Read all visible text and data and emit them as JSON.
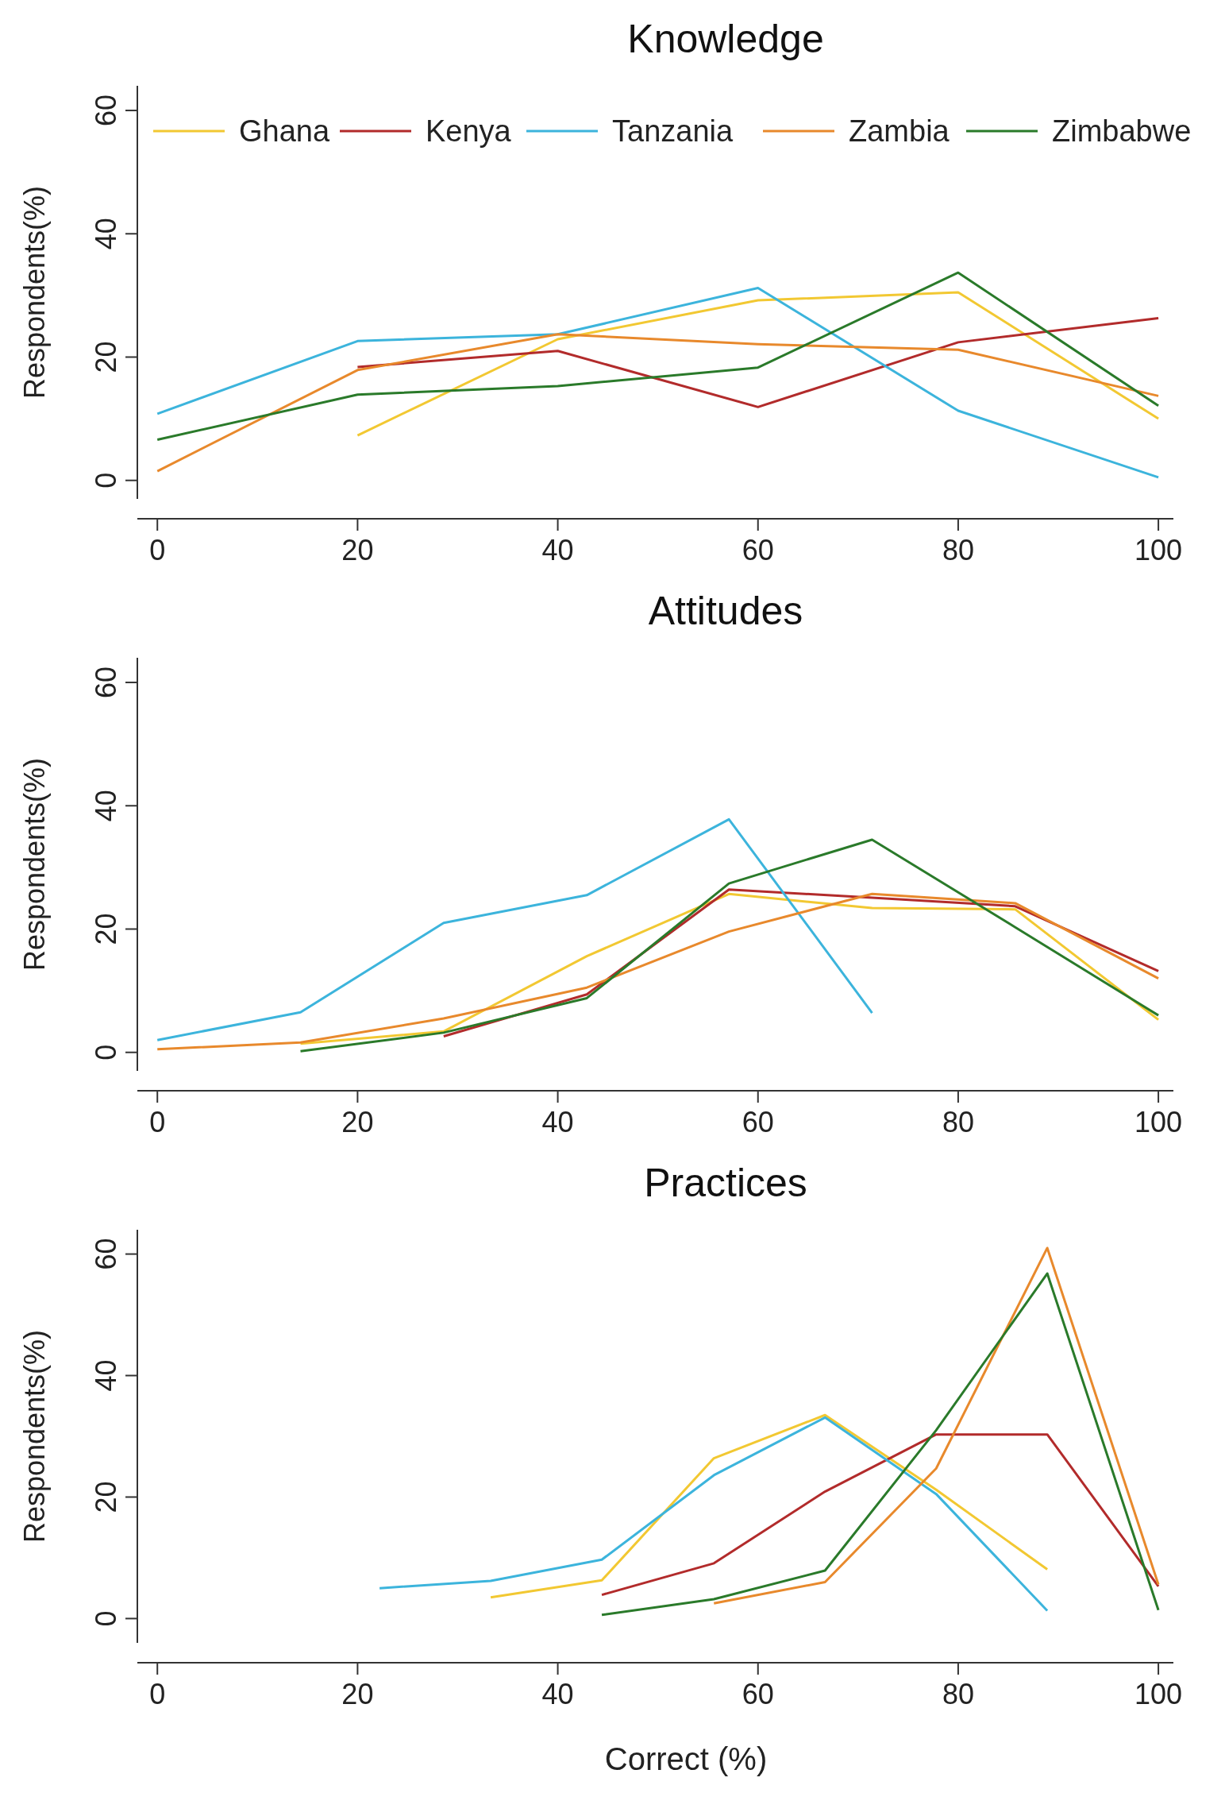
{
  "chart_data": [
    {
      "type": "line",
      "title": "Knowledge",
      "ylabel": "Respondents(%)",
      "xlim": [
        -2,
        101.5
      ],
      "ylim": [
        -3,
        64
      ],
      "xticks": [
        0,
        20,
        40,
        60,
        80,
        100
      ],
      "yticks": [
        0,
        20,
        40,
        60
      ],
      "grid": false,
      "legend": "top",
      "marker": "none",
      "line_style": "solid",
      "series": [
        {
          "name": "Ghana",
          "color": "#f2c832",
          "x": [
            20,
            40,
            60,
            80,
            100
          ],
          "values": [
            7.3,
            22.9,
            29.2,
            30.5,
            10
          ]
        },
        {
          "name": "Kenya",
          "color": "#b22b2b",
          "x": [
            20,
            40,
            60,
            80,
            100
          ],
          "values": [
            18.4,
            21,
            11.9,
            22.4,
            26.3
          ]
        },
        {
          "name": "Tanzania",
          "color": "#3cb4dc",
          "x": [
            0,
            20,
            40,
            60,
            80,
            100
          ],
          "values": [
            10.8,
            22.6,
            23.7,
            31.2,
            11.3,
            0.5
          ]
        },
        {
          "name": "Zambia",
          "color": "#e8892c",
          "x": [
            0,
            20,
            40,
            60,
            80,
            100
          ],
          "values": [
            1.5,
            17.9,
            23.7,
            22.1,
            21.2,
            13.7
          ]
        },
        {
          "name": "Zimbabwe",
          "color": "#2a7a2a",
          "x": [
            0,
            20,
            40,
            60,
            80,
            100
          ],
          "values": [
            6.6,
            13.9,
            15.3,
            18.3,
            33.7,
            12.1
          ]
        }
      ]
    },
    {
      "type": "line",
      "title": "Attitudes",
      "ylabel": "Respondents(%)",
      "xlim": [
        -2,
        101.5
      ],
      "ylim": [
        -3,
        64
      ],
      "xticks": [
        0,
        20,
        40,
        60,
        80,
        100
      ],
      "yticks": [
        0,
        20,
        40,
        60
      ],
      "grid": false,
      "legend": false,
      "marker": "none",
      "line_style": "solid",
      "series": [
        {
          "color": "#f2c832",
          "x": [
            14.3,
            28.6,
            42.9,
            57.1,
            71.4,
            85.7,
            100
          ],
          "values": [
            1.4,
            3.4,
            15.6,
            25.7,
            23.4,
            23.2,
            5.3
          ]
        },
        {
          "color": "#b22b2b",
          "x": [
            28.6,
            42.9,
            57.1,
            71.4,
            85.7,
            100
          ],
          "values": [
            2.6,
            9.4,
            26.4,
            25.1,
            23.7,
            13.2
          ]
        },
        {
          "color": "#3cb4dc",
          "x": [
            0,
            14.3,
            28.6,
            42.9,
            57.1,
            71.4
          ],
          "values": [
            2,
            6.5,
            21,
            25.5,
            37.8,
            6.4
          ]
        },
        {
          "color": "#e8892c",
          "x": [
            0,
            14.3,
            28.6,
            42.9,
            57.1,
            71.4,
            85.7,
            100
          ],
          "values": [
            0.5,
            1.6,
            5.5,
            10.5,
            19.6,
            25.7,
            24.2,
            12
          ]
        },
        {
          "color": "#2a7a2a",
          "x": [
            14.3,
            28.6,
            42.9,
            57.1,
            71.4,
            85.7,
            100
          ],
          "values": [
            0.2,
            3.2,
            8.8,
            27.4,
            34.5,
            20.3,
            6
          ]
        }
      ]
    },
    {
      "type": "line",
      "title": "Practices",
      "xlabel": "Correct (%)",
      "ylabel": "Respondents(%)",
      "xlim": [
        -2,
        101.5
      ],
      "ylim": [
        -4,
        64
      ],
      "xticks": [
        0,
        20,
        40,
        60,
        80,
        100
      ],
      "yticks": [
        0,
        20,
        40,
        60
      ],
      "grid": false,
      "legend": false,
      "marker": "none",
      "line_style": "solid",
      "series": [
        {
          "color": "#f2c832",
          "x": [
            33.3,
            44.4,
            55.6,
            66.7,
            77.8,
            88.9
          ],
          "values": [
            3.5,
            6.3,
            26.4,
            33.5,
            21.2,
            8.1
          ]
        },
        {
          "color": "#b22b2b",
          "x": [
            44.4,
            55.6,
            66.7,
            77.8,
            88.9,
            100
          ],
          "values": [
            3.9,
            9.1,
            20.9,
            30.3,
            30.3,
            5.3
          ]
        },
        {
          "color": "#3cb4dc",
          "x": [
            22.2,
            33.3,
            44.4,
            55.6,
            66.7,
            77.8,
            88.9
          ],
          "values": [
            5,
            6.2,
            9.7,
            23.6,
            33.1,
            20.5,
            1.3
          ]
        },
        {
          "color": "#e8892c",
          "x": [
            55.6,
            66.7,
            77.8,
            88.9,
            100
          ],
          "values": [
            2.5,
            6,
            24.7,
            61,
            5.6
          ]
        },
        {
          "color": "#2a7a2a",
          "x": [
            44.4,
            55.6,
            66.7,
            77.8,
            88.9,
            100
          ],
          "values": [
            0.6,
            3.2,
            7.9,
            31,
            56.8,
            1.4
          ]
        }
      ]
    }
  ]
}
